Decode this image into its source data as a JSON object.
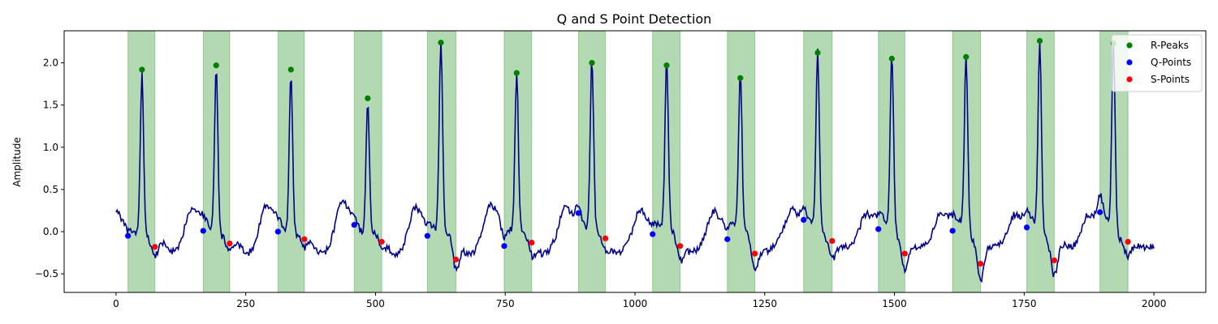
{
  "chart_data": {
    "type": "line",
    "title": "Q and S Point Detection",
    "xlabel": "",
    "ylabel": "Amplitude",
    "xlim": [
      -100,
      2100
    ],
    "ylim": [
      -0.72,
      2.38
    ],
    "xticks": [
      0,
      250,
      500,
      750,
      1000,
      1250,
      1500,
      1750,
      2000
    ],
    "yticks": [
      -0.5,
      0.0,
      0.5,
      1.0,
      1.5,
      2.0
    ],
    "ytick_labels": [
      "−0.5",
      "0.0",
      "0.5",
      "1.0",
      "1.5",
      "2.0"
    ],
    "grid": false,
    "legend_position": "top-right",
    "colors": {
      "signal": "#00008b",
      "r_peaks": "#008000",
      "q_points": "#0000ff",
      "s_points": "#ff0000",
      "regions": "#008000"
    },
    "beats": [
      {
        "q": [
          23,
          -0.05
        ],
        "r": [
          50,
          1.92
        ],
        "s": [
          75,
          -0.18
        ]
      },
      {
        "q": [
          168,
          0.01
        ],
        "r": [
          193,
          1.97
        ],
        "s": [
          219,
          -0.14
        ]
      },
      {
        "q": [
          312,
          0.0
        ],
        "r": [
          337,
          1.92
        ],
        "s": [
          363,
          -0.09
        ]
      },
      {
        "q": [
          459,
          0.08
        ],
        "r": [
          485,
          1.58
        ],
        "s": [
          512,
          -0.12
        ]
      },
      {
        "q": [
          600,
          -0.05
        ],
        "r": [
          626,
          2.24
        ],
        "s": [
          655,
          -0.33
        ]
      },
      {
        "q": [
          748,
          -0.17
        ],
        "r": [
          772,
          1.88
        ],
        "s": [
          801,
          -0.13
        ]
      },
      {
        "q": [
          891,
          0.22
        ],
        "r": [
          917,
          2.0
        ],
        "s": [
          943,
          -0.08
        ]
      },
      {
        "q": [
          1034,
          -0.03
        ],
        "r": [
          1061,
          1.97
        ],
        "s": [
          1087,
          -0.17
        ]
      },
      {
        "q": [
          1178,
          -0.09
        ],
        "r": [
          1203,
          1.82
        ],
        "s": [
          1231,
          -0.26
        ]
      },
      {
        "q": [
          1325,
          0.14
        ],
        "r": [
          1352,
          2.12
        ],
        "s": [
          1380,
          -0.11
        ]
      },
      {
        "q": [
          1469,
          0.03
        ],
        "r": [
          1495,
          2.05
        ],
        "s": [
          1520,
          -0.26
        ]
      },
      {
        "q": [
          1612,
          0.01
        ],
        "r": [
          1638,
          2.07
        ],
        "s": [
          1666,
          -0.38
        ]
      },
      {
        "q": [
          1755,
          0.05
        ],
        "r": [
          1780,
          2.26
        ],
        "s": [
          1808,
          -0.34
        ]
      },
      {
        "q": [
          1896,
          0.23
        ],
        "r": [
          1922,
          2.23
        ],
        "s": [
          1950,
          -0.12
        ]
      }
    ],
    "series": [
      {
        "name": "R-Peaks",
        "marker": "circle",
        "color": "#008000"
      },
      {
        "name": "Q-Points",
        "marker": "circle",
        "color": "#0000ff"
      },
      {
        "name": "S-Points",
        "marker": "circle",
        "color": "#ff0000"
      }
    ]
  }
}
